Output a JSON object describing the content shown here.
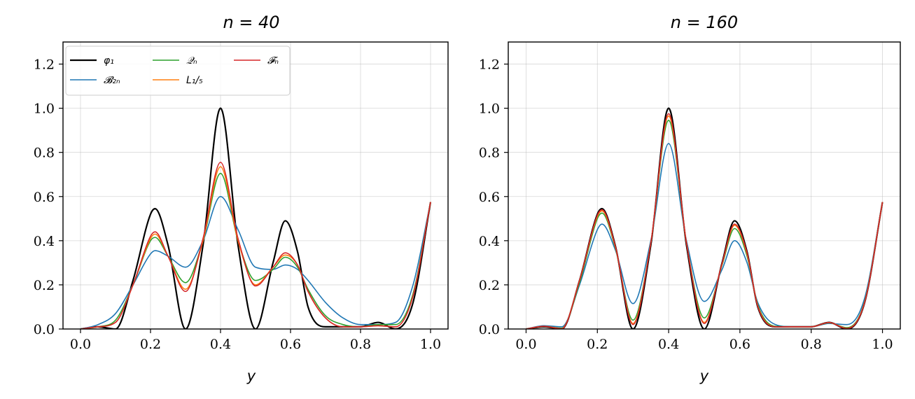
{
  "chart_data": [
    {
      "type": "line",
      "title": "n = 40",
      "xlabel": "y",
      "ylabel": "",
      "xlim": [
        -0.05,
        1.05
      ],
      "ylim": [
        0.0,
        1.3
      ],
      "xticks": [
        "0.0",
        "0.2",
        "0.4",
        "0.6",
        "0.8",
        "1.0"
      ],
      "yticks": [
        "0.0",
        "0.2",
        "0.4",
        "0.6",
        "0.8",
        "1.0",
        "1.2"
      ],
      "grid": true,
      "legend": "top-left",
      "legend_ncol": 3,
      "series": [
        {
          "name": "φ₁",
          "color": "#000000",
          "x": [
            0.0,
            0.05,
            0.1,
            0.15,
            0.2,
            0.213,
            0.25,
            0.3,
            0.35,
            0.4,
            0.45,
            0.5,
            0.55,
            0.585,
            0.62,
            0.65,
            0.7,
            0.75,
            0.8,
            0.85,
            0.9,
            0.95,
            1.0
          ],
          "y": [
            0.0,
            0.01,
            0.0,
            0.22,
            0.52,
            0.545,
            0.38,
            0.0,
            0.38,
            1.0,
            0.38,
            0.0,
            0.3,
            0.49,
            0.35,
            0.1,
            0.01,
            0.01,
            0.01,
            0.03,
            0.0,
            0.12,
            0.575
          ]
        },
        {
          "name": "𝓑₂ₙ",
          "color": "#1f77b4",
          "x": [
            0.0,
            0.05,
            0.1,
            0.15,
            0.2,
            0.213,
            0.25,
            0.3,
            0.35,
            0.4,
            0.45,
            0.5,
            0.55,
            0.585,
            0.62,
            0.65,
            0.7,
            0.75,
            0.8,
            0.85,
            0.9,
            0.95,
            1.0
          ],
          "y": [
            0.0,
            0.02,
            0.07,
            0.2,
            0.34,
            0.355,
            0.33,
            0.28,
            0.4,
            0.6,
            0.45,
            0.28,
            0.27,
            0.29,
            0.27,
            0.22,
            0.12,
            0.05,
            0.02,
            0.02,
            0.03,
            0.2,
            0.575
          ]
        },
        {
          "name": "𝒬ₙ",
          "color": "#2ca02c",
          "x": [
            0.0,
            0.05,
            0.1,
            0.15,
            0.2,
            0.213,
            0.25,
            0.3,
            0.35,
            0.4,
            0.45,
            0.5,
            0.55,
            0.585,
            0.62,
            0.65,
            0.7,
            0.75,
            0.8,
            0.85,
            0.9,
            0.95,
            1.0
          ],
          "y": [
            0.0,
            0.01,
            0.04,
            0.2,
            0.4,
            0.415,
            0.33,
            0.21,
            0.4,
            0.705,
            0.4,
            0.22,
            0.27,
            0.325,
            0.28,
            0.18,
            0.06,
            0.02,
            0.01,
            0.02,
            0.02,
            0.16,
            0.575
          ]
        },
        {
          "name": "L₁/₅",
          "color": "#ff7f0e",
          "x": [
            0.0,
            0.05,
            0.1,
            0.15,
            0.2,
            0.213,
            0.25,
            0.3,
            0.35,
            0.4,
            0.45,
            0.5,
            0.55,
            0.585,
            0.62,
            0.65,
            0.7,
            0.75,
            0.8,
            0.85,
            0.9,
            0.95,
            1.0
          ],
          "y": [
            0.0,
            0.01,
            0.03,
            0.2,
            0.41,
            0.43,
            0.33,
            0.18,
            0.4,
            0.735,
            0.4,
            0.2,
            0.28,
            0.335,
            0.29,
            0.17,
            0.05,
            0.01,
            0.01,
            0.015,
            0.01,
            0.15,
            0.575
          ]
        },
        {
          "name": "𝓕ₙ",
          "color": "#d62728",
          "x": [
            0.0,
            0.05,
            0.1,
            0.15,
            0.2,
            0.213,
            0.25,
            0.3,
            0.35,
            0.4,
            0.45,
            0.5,
            0.55,
            0.585,
            0.62,
            0.65,
            0.7,
            0.75,
            0.8,
            0.85,
            0.9,
            0.95,
            1.0
          ],
          "y": [
            0.0,
            0.01,
            0.03,
            0.2,
            0.42,
            0.44,
            0.33,
            0.17,
            0.41,
            0.755,
            0.41,
            0.195,
            0.28,
            0.345,
            0.29,
            0.17,
            0.05,
            0.01,
            0.01,
            0.015,
            0.01,
            0.15,
            0.575
          ]
        }
      ]
    },
    {
      "type": "line",
      "title": "n = 160",
      "xlabel": "y",
      "ylabel": "",
      "xlim": [
        -0.05,
        1.05
      ],
      "ylim": [
        0.0,
        1.3
      ],
      "xticks": [
        "0.0",
        "0.2",
        "0.4",
        "0.6",
        "0.8",
        "1.0"
      ],
      "yticks": [
        "0.0",
        "0.2",
        "0.4",
        "0.6",
        "0.8",
        "1.0",
        "1.2"
      ],
      "grid": true,
      "series": [
        {
          "name": "φ₁",
          "color": "#000000",
          "x": [
            0.0,
            0.05,
            0.1,
            0.15,
            0.2,
            0.213,
            0.25,
            0.3,
            0.35,
            0.4,
            0.45,
            0.5,
            0.55,
            0.585,
            0.62,
            0.65,
            0.7,
            0.75,
            0.8,
            0.85,
            0.9,
            0.95,
            1.0
          ],
          "y": [
            0.0,
            0.01,
            0.0,
            0.22,
            0.52,
            0.545,
            0.38,
            0.0,
            0.38,
            1.0,
            0.38,
            0.0,
            0.3,
            0.49,
            0.35,
            0.1,
            0.01,
            0.01,
            0.01,
            0.03,
            0.0,
            0.12,
            0.575
          ]
        },
        {
          "name": "𝓑₂ₙ",
          "color": "#1f77b4",
          "x": [
            0.0,
            0.05,
            0.1,
            0.15,
            0.2,
            0.213,
            0.25,
            0.3,
            0.35,
            0.4,
            0.45,
            0.5,
            0.55,
            0.585,
            0.62,
            0.65,
            0.7,
            0.75,
            0.8,
            0.85,
            0.9,
            0.95,
            1.0
          ],
          "y": [
            0.0,
            0.015,
            0.01,
            0.2,
            0.45,
            0.475,
            0.36,
            0.115,
            0.4,
            0.84,
            0.4,
            0.125,
            0.27,
            0.4,
            0.3,
            0.12,
            0.02,
            0.01,
            0.01,
            0.025,
            0.02,
            0.14,
            0.575
          ]
        },
        {
          "name": "𝒬ₙ",
          "color": "#2ca02c",
          "x": [
            0.0,
            0.05,
            0.1,
            0.15,
            0.2,
            0.213,
            0.25,
            0.3,
            0.35,
            0.4,
            0.45,
            0.5,
            0.55,
            0.585,
            0.62,
            0.65,
            0.7,
            0.75,
            0.8,
            0.85,
            0.9,
            0.95,
            1.0
          ],
          "y": [
            0.0,
            0.012,
            0.004,
            0.21,
            0.5,
            0.525,
            0.37,
            0.04,
            0.39,
            0.945,
            0.39,
            0.05,
            0.29,
            0.455,
            0.33,
            0.11,
            0.012,
            0.01,
            0.01,
            0.028,
            0.006,
            0.125,
            0.575
          ]
        },
        {
          "name": "L₁/₅",
          "color": "#ff7f0e",
          "x": [
            0.0,
            0.05,
            0.1,
            0.15,
            0.2,
            0.213,
            0.25,
            0.3,
            0.35,
            0.4,
            0.45,
            0.5,
            0.55,
            0.585,
            0.62,
            0.65,
            0.7,
            0.75,
            0.8,
            0.85,
            0.9,
            0.95,
            1.0
          ],
          "y": [
            0.0,
            0.012,
            0.002,
            0.22,
            0.51,
            0.535,
            0.375,
            0.025,
            0.39,
            0.965,
            0.39,
            0.03,
            0.295,
            0.47,
            0.34,
            0.105,
            0.01,
            0.01,
            0.01,
            0.029,
            0.003,
            0.122,
            0.575
          ]
        },
        {
          "name": "𝓕ₙ",
          "color": "#d62728",
          "x": [
            0.0,
            0.05,
            0.1,
            0.15,
            0.2,
            0.213,
            0.25,
            0.3,
            0.35,
            0.4,
            0.45,
            0.5,
            0.55,
            0.585,
            0.62,
            0.65,
            0.7,
            0.75,
            0.8,
            0.85,
            0.9,
            0.95,
            1.0
          ],
          "y": [
            0.0,
            0.012,
            0.001,
            0.22,
            0.515,
            0.54,
            0.378,
            0.02,
            0.39,
            0.975,
            0.39,
            0.025,
            0.297,
            0.475,
            0.345,
            0.103,
            0.01,
            0.01,
            0.01,
            0.029,
            0.002,
            0.121,
            0.575
          ]
        }
      ]
    }
  ]
}
